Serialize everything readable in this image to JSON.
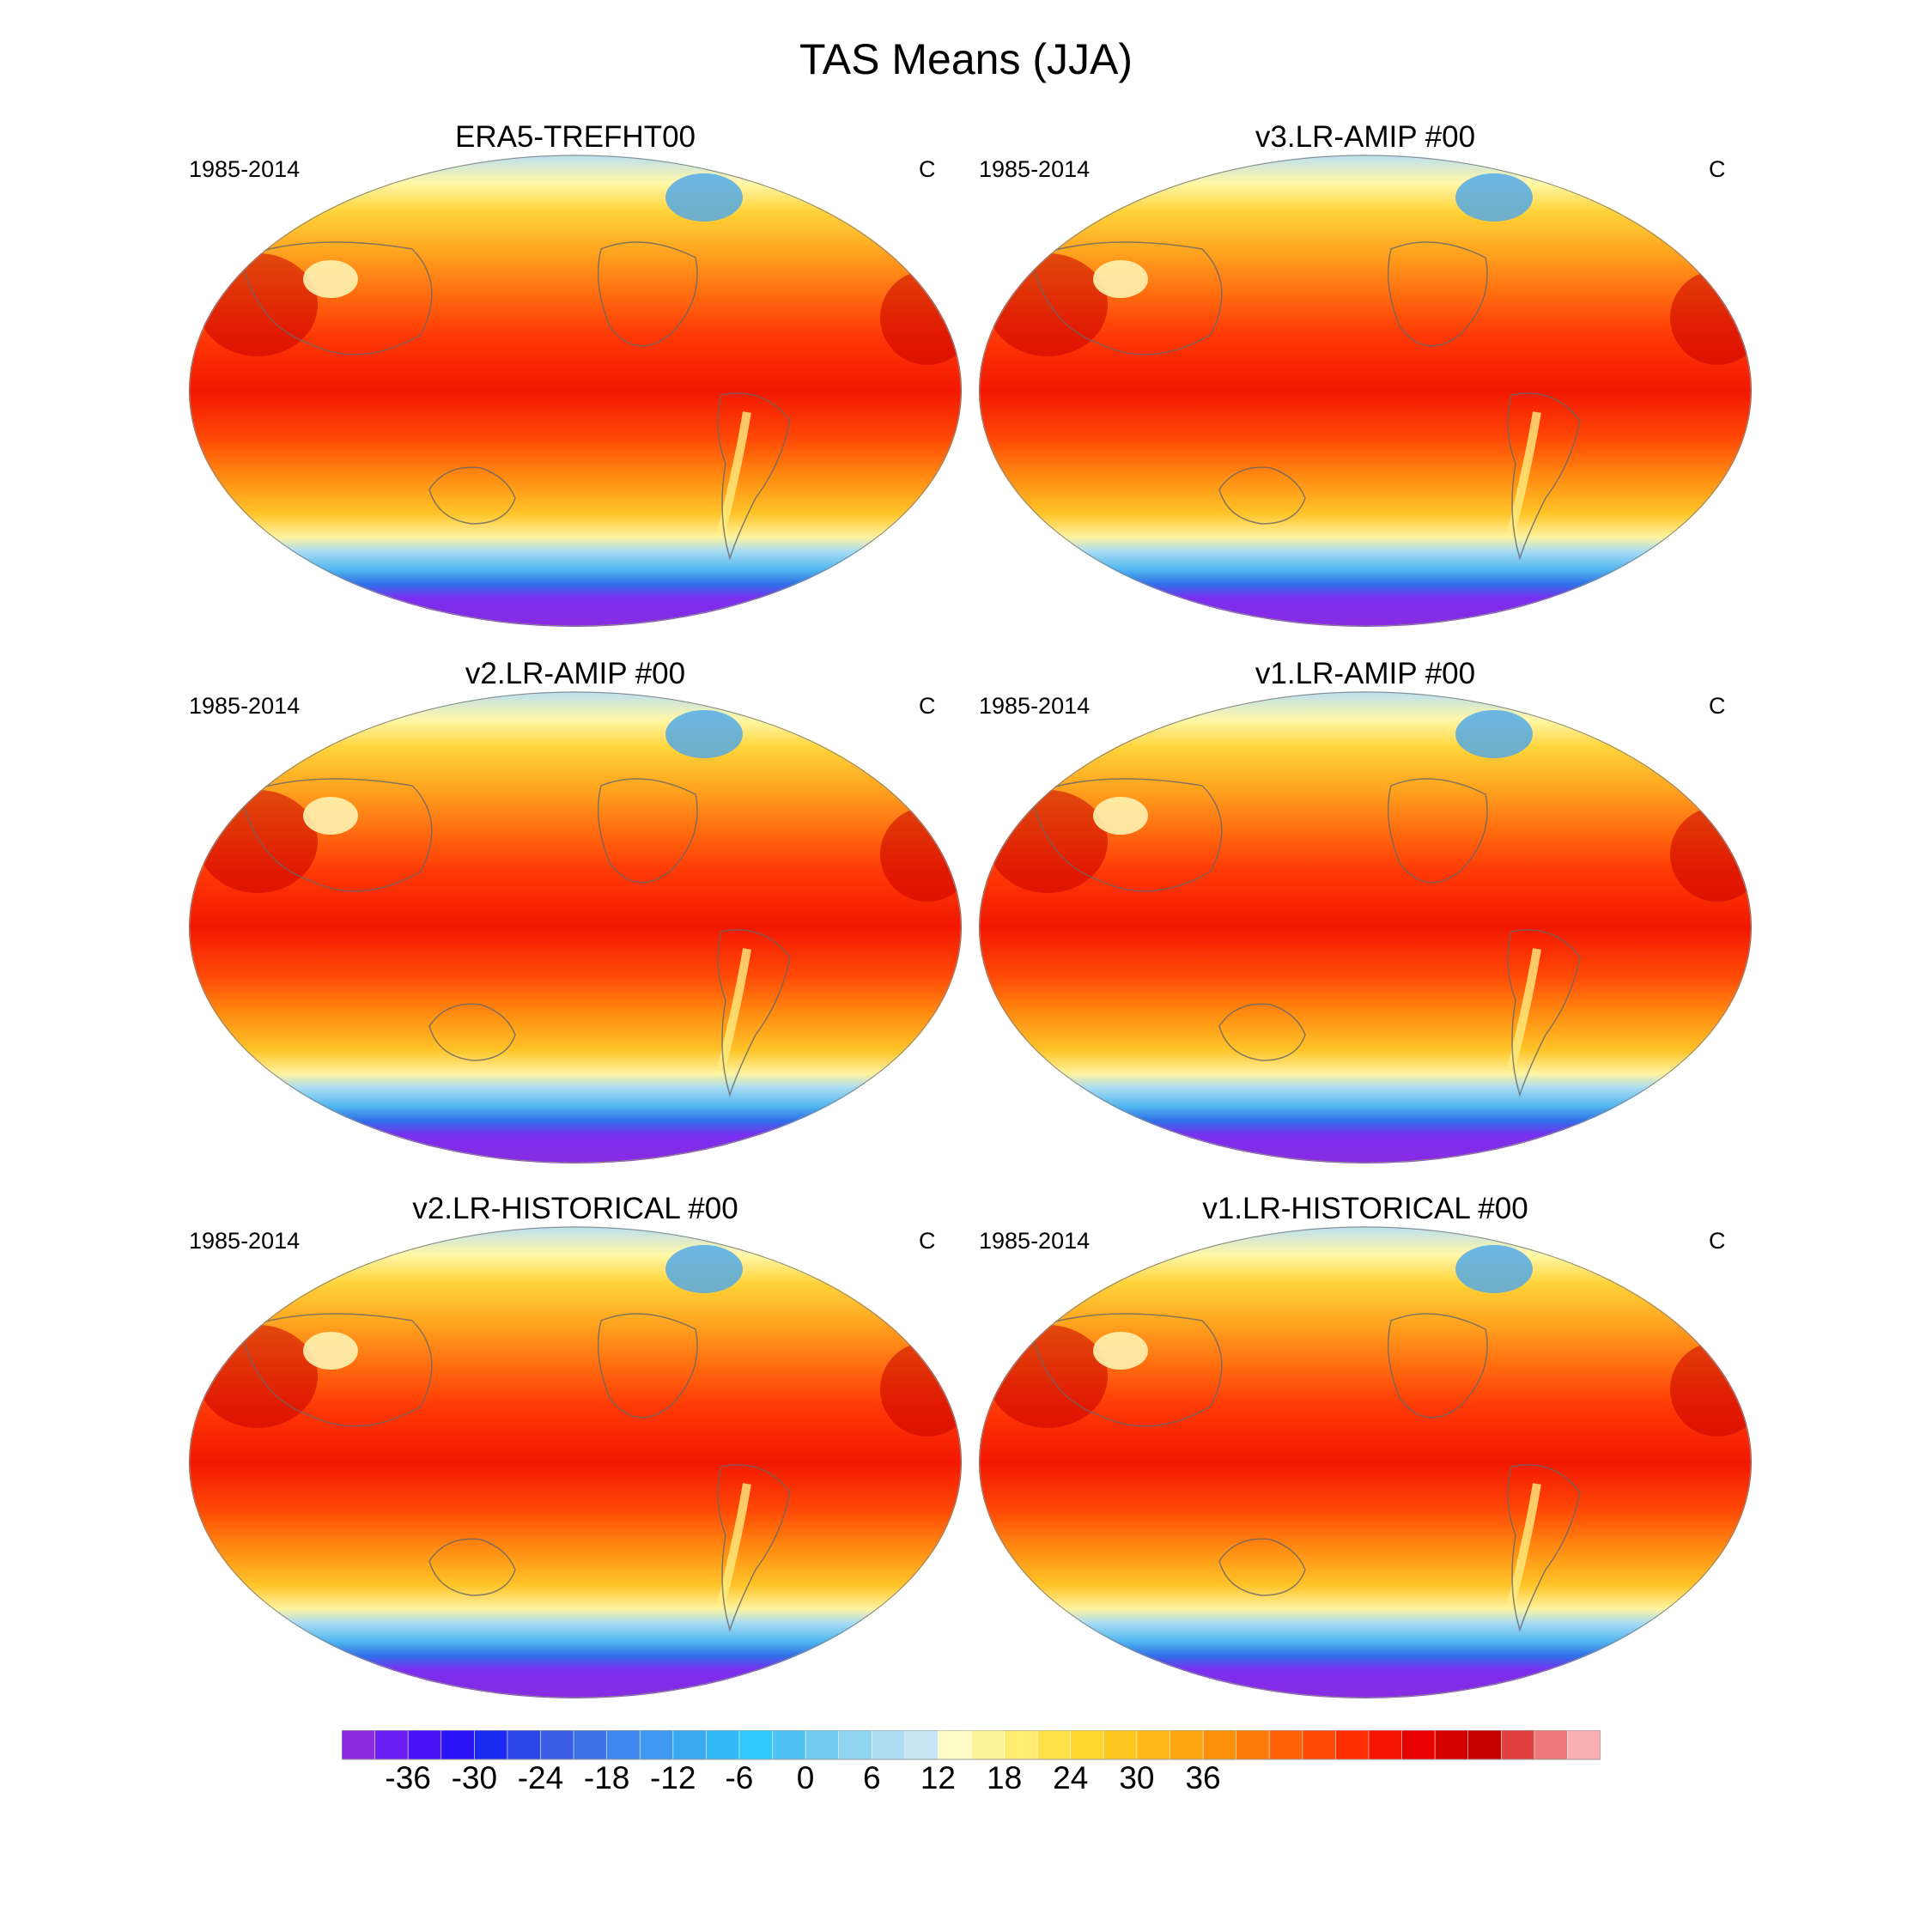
{
  "figure": {
    "title": "TAS Means (JJA)",
    "panels": [
      {
        "title": "ERA5-TREFHT00",
        "period": "1985-2014",
        "units": "C"
      },
      {
        "title": "v3.LR-AMIP  #00",
        "period": "1985-2014",
        "units": "C"
      },
      {
        "title": "v2.LR-AMIP  #00",
        "period": "1985-2014",
        "units": "C"
      },
      {
        "title": "v1.LR-AMIP  #00",
        "period": "1985-2014",
        "units": "C"
      },
      {
        "title": "v2.LR-HISTORICAL  #00",
        "period": "1985-2014",
        "units": "C"
      },
      {
        "title": "v1.LR-HISTORICAL  #00",
        "period": "1985-2014",
        "units": "C"
      }
    ]
  },
  "colorbar": {
    "labels": [
      "-36",
      "-30",
      "-24",
      "-18",
      "-12",
      "-6",
      "0",
      "6",
      "12",
      "18",
      "24",
      "30",
      "36"
    ],
    "colors": [
      "#8a2be2",
      "#6a1ef5",
      "#4b14f7",
      "#2a14f5",
      "#1a2af0",
      "#2d46ea",
      "#3a5ee6",
      "#3d72ea",
      "#3f86ee",
      "#3f99f0",
      "#3aaaf3",
      "#35b9f6",
      "#2fc8f8",
      "#4fc4f2",
      "#72ccf0",
      "#90d4f0",
      "#aedcf1",
      "#c7e5f4",
      "#fffbc9",
      "#fff49a",
      "#ffec70",
      "#ffe24a",
      "#ffd630",
      "#ffc820",
      "#ffb818",
      "#ffa510",
      "#ff900c",
      "#ff7a08",
      "#ff6206",
      "#ff4a04",
      "#ff2e02",
      "#f51600",
      "#e60000",
      "#d40000",
      "#c40000",
      "#e04040",
      "#ec7878",
      "#f8b0b0"
    ]
  }
}
